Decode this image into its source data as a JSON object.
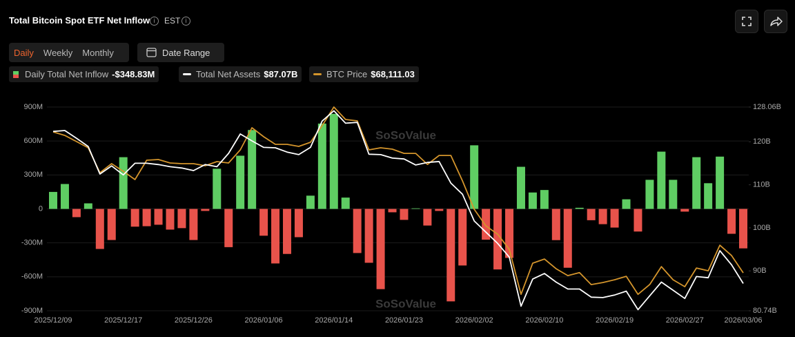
{
  "header": {
    "title": "Total Bitcoin Spot ETF Net Inflow",
    "timezone": "EST"
  },
  "controls": {
    "tabs": [
      "Daily",
      "Weekly",
      "Monthly"
    ],
    "active_tab": 0,
    "date_range": "Date Range"
  },
  "chart_data": {
    "type": "bar-line",
    "watermark": "SoSoValue",
    "categories": [
      "2025/12/09",
      null,
      null,
      null,
      null,
      null,
      "2025/12/17",
      null,
      null,
      null,
      null,
      null,
      "2025/12/26",
      null,
      null,
      null,
      null,
      null,
      "2026/01/06",
      null,
      null,
      null,
      null,
      null,
      "2026/01/14",
      null,
      null,
      null,
      null,
      null,
      "2026/01/23",
      null,
      null,
      null,
      null,
      null,
      "2026/02/02",
      null,
      null,
      null,
      null,
      null,
      "2026/02/10",
      null,
      null,
      null,
      null,
      null,
      "2026/02/19",
      null,
      null,
      null,
      null,
      null,
      "2026/02/27",
      null,
      null,
      null,
      null,
      "2026/03/06"
    ],
    "series": [
      {
        "name": "Daily Total Net Inflow",
        "legend_value": "-$348.83M",
        "type": "bar",
        "color": "#5fcd63",
        "negative_color": "#e8534b",
        "values": [
          150,
          220,
          -73,
          49,
          -354,
          -275,
          457,
          -157,
          -153,
          -140,
          -183,
          -170,
          -275,
          -18,
          355,
          -338,
          470,
          697,
          -237,
          -482,
          -398,
          -250,
          117,
          754,
          840,
          100,
          -390,
          -476,
          -709,
          -30,
          -97,
          5,
          -147,
          -18,
          -817,
          -500,
          562,
          -272,
          -535,
          -433,
          372,
          145,
          167,
          -276,
          -520,
          10,
          -100,
          -135,
          -165,
          85,
          -200,
          257,
          506,
          257,
          -24,
          457,
          227,
          462,
          -220,
          -348.83
        ]
      },
      {
        "name": "Total Net Assets",
        "legend_value": "$87.07B",
        "type": "line",
        "axis": "y2",
        "color": "#ffffff",
        "values": [
          122.4,
          122.6,
          120.8,
          118.9,
          112.5,
          114.4,
          112.3,
          115.0,
          115.0,
          114.7,
          114.2,
          113.9,
          113.3,
          114.7,
          114.2,
          117.3,
          121.8,
          120.2,
          118.7,
          118.6,
          117.6,
          117.0,
          118.7,
          124.8,
          127.2,
          124.3,
          124.5,
          117.1,
          117.0,
          116.2,
          116.0,
          114.6,
          115.2,
          115.4,
          110.4,
          107.8,
          101.6,
          99.0,
          96.4,
          93.2,
          81.8,
          88.1,
          89.4,
          87.4,
          85.8,
          85.8,
          83.9,
          83.8,
          84.4,
          85.3,
          81.0,
          84.2,
          87.4,
          85.5,
          83.6,
          88.7,
          88.4,
          94.7,
          91.4,
          87.07
        ]
      },
      {
        "name": "BTC Price",
        "legend_value": "$68,111.03",
        "type": "line",
        "axis": "y3",
        "color": "#d4952c",
        "values": [
          92670,
          92060,
          90980,
          89900,
          85560,
          87130,
          85800,
          84360,
          87730,
          87850,
          87250,
          87130,
          87130,
          86770,
          87490,
          87250,
          89540,
          93390,
          91820,
          90500,
          90500,
          90140,
          90860,
          93750,
          97000,
          94830,
          94590,
          89540,
          89900,
          89660,
          88930,
          88930,
          87000,
          88570,
          88570,
          84120,
          79180,
          76290,
          74850,
          72200,
          64370,
          69790,
          70510,
          68830,
          67620,
          68140,
          66060,
          66420,
          66900,
          67500,
          64370,
          66060,
          69190,
          66900,
          65700,
          68950,
          68470,
          72920,
          71110,
          68111.03
        ]
      }
    ],
    "ylim": [
      -900,
      900
    ],
    "yticks": [
      {
        "value": -900,
        "label": "-900M"
      },
      {
        "value": -600,
        "label": "-600M"
      },
      {
        "value": -300,
        "label": "-300M"
      },
      0,
      {
        "value": 300,
        "label": "300M"
      },
      {
        "value": 600,
        "label": "600M"
      },
      {
        "value": 900,
        "label": "900M"
      }
    ],
    "y2lim": [
      80.74,
      128.06
    ],
    "y2ticks": [
      {
        "value": 80.74,
        "label": "80.74B"
      },
      {
        "value": 90,
        "label": "90B"
      },
      {
        "value": 100,
        "label": "100B"
      },
      {
        "value": 110,
        "label": "110B"
      },
      {
        "value": 120,
        "label": "120B"
      },
      {
        "value": 128.06,
        "label": "128.06B"
      }
    ],
    "y3lim": [
      61500,
      97000
    ],
    "grid": true
  }
}
